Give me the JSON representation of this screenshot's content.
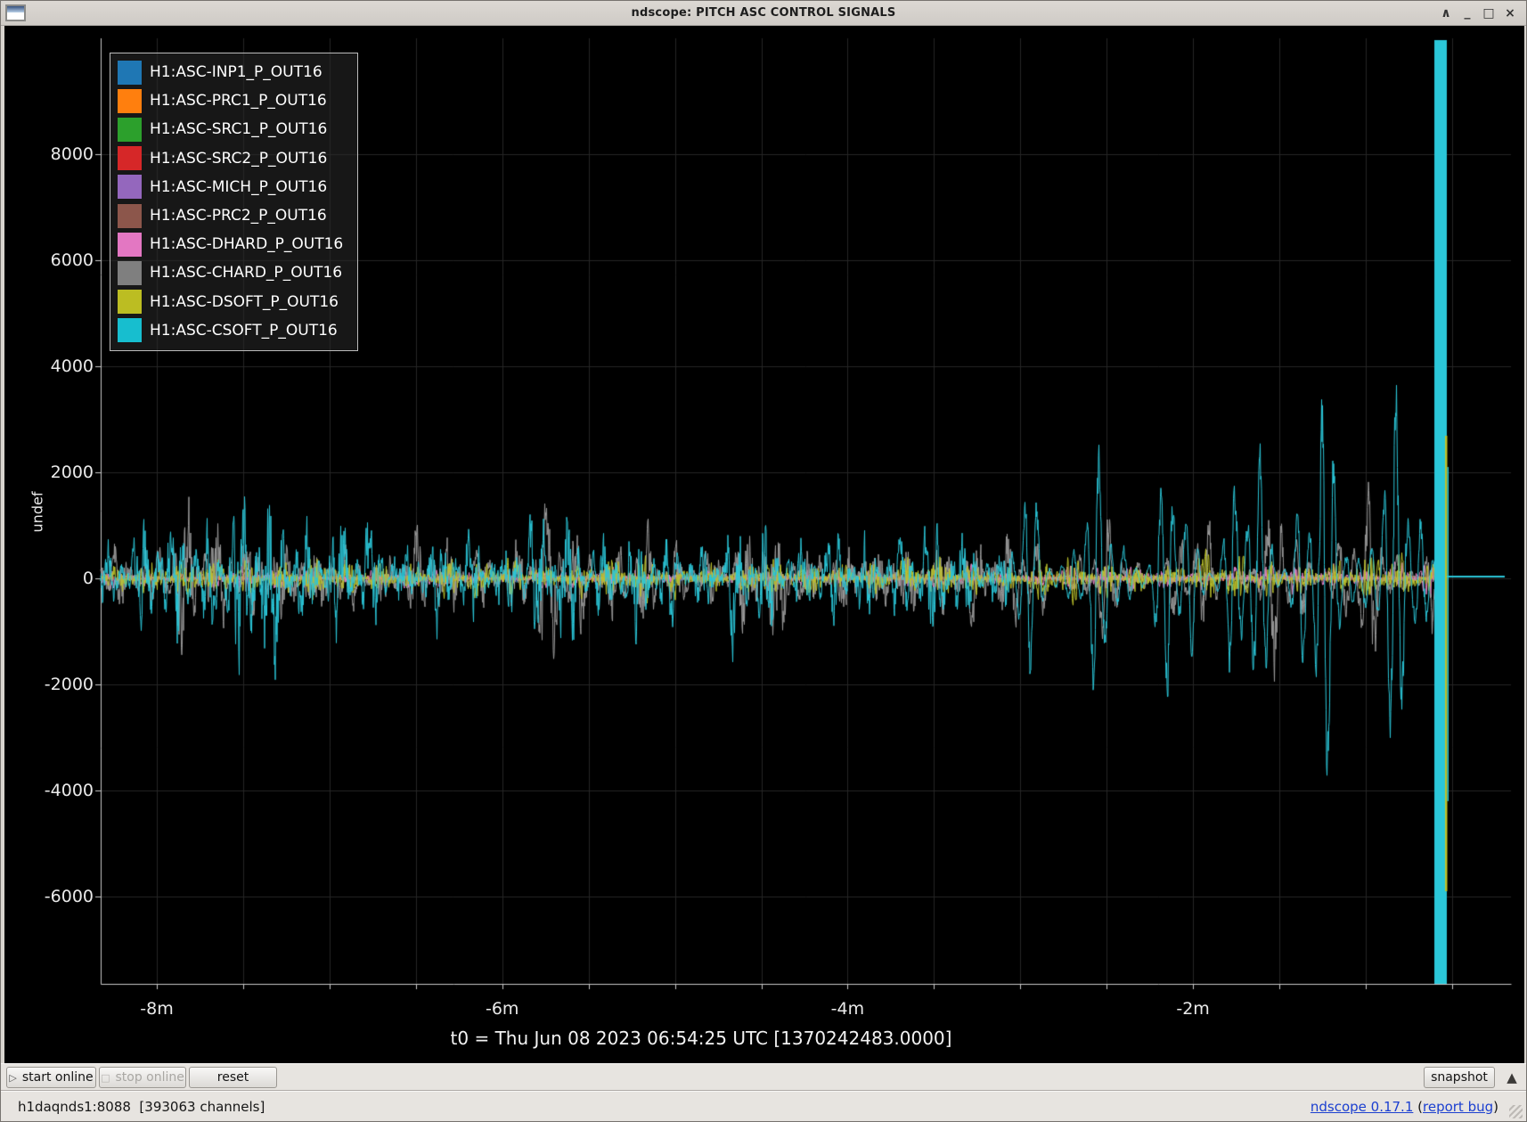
{
  "titlebar": {
    "title": "ndscope: PITCH ASC CONTROL SIGNALS",
    "controls": {
      "shade": "∧",
      "minimize": "_",
      "maximize": "□",
      "close": "×"
    }
  },
  "toolbar": {
    "start_icon": "▷",
    "start_label": "start online",
    "stop_icon": "□",
    "stop_label": "stop online",
    "reset_label": "reset",
    "snapshot_label": "snapshot",
    "expander_icon": "▲"
  },
  "statusbar": {
    "server_info": "h1daqnds1:8088  [393063 channels]",
    "version_link": "ndscope 0.17.1",
    "bug_prefix": " (",
    "bug_link": "report bug",
    "bug_suffix": ")"
  },
  "chart_data": {
    "type": "line",
    "title": "",
    "ylabel": "undef",
    "t0_label": "t0 = Thu Jun 08 2023 06:54:25 UTC [1370242483.0000]",
    "yticks": [
      8000,
      6000,
      4000,
      2000,
      0,
      -2000,
      -4000,
      -6000
    ],
    "xtick_labels": [
      "-8m",
      "-6m",
      "-4m",
      "-2m"
    ],
    "xtick_minutes": [
      -8,
      -6,
      -4,
      -2
    ],
    "x_range_minutes": [
      -8.36,
      -0.17
    ],
    "y_range": [
      -7650,
      10200
    ],
    "grid": true,
    "legend_position": "top-left",
    "background": "#000000",
    "series": [
      {
        "name": "H1:ASC-INP1_P_OUT16",
        "color": "#1f77b4",
        "plot_color": "#1f77b4",
        "envelope": [
          [
            -8.33,
            90
          ],
          [
            -0.6,
            90
          ]
        ],
        "texture": {
          "period_s": 1.3,
          "base_w": 0.2,
          "osc_w": 0.2,
          "packet_s": 40,
          "osc_start_t": null
        }
      },
      {
        "name": "H1:ASC-PRC1_P_OUT16",
        "color": "#ff7f0e",
        "plot_color": "#ff7f0e",
        "envelope": [
          [
            -8.33,
            75
          ],
          [
            -0.6,
            75
          ]
        ],
        "texture": {
          "period_s": 1.3,
          "base_w": 0.2,
          "osc_w": 0.2,
          "packet_s": 40,
          "osc_start_t": null
        }
      },
      {
        "name": "H1:ASC-SRC1_P_OUT16",
        "color": "#2ca02c",
        "plot_color": "#2ca02c",
        "envelope": [
          [
            -8.33,
            62
          ],
          [
            -0.6,
            62
          ]
        ],
        "texture": {
          "period_s": 1.3,
          "base_w": 0.2,
          "osc_w": 0.2,
          "packet_s": 40,
          "osc_start_t": null
        }
      },
      {
        "name": "H1:ASC-SRC2_P_OUT16",
        "color": "#d62728",
        "plot_color": "#d62728",
        "envelope": [
          [
            -8.33,
            55
          ],
          [
            -0.6,
            55
          ]
        ],
        "texture": {
          "period_s": 1.3,
          "base_w": 0.2,
          "osc_w": 0.2,
          "packet_s": 40,
          "osc_start_t": null
        }
      },
      {
        "name": "H1:ASC-MICH_P_OUT16",
        "color": "#9467bd",
        "plot_color": "#9467bd",
        "envelope": [
          [
            -8.33,
            50
          ],
          [
            -0.6,
            50
          ]
        ],
        "texture": {
          "period_s": 1.3,
          "base_w": 0.2,
          "osc_w": 0.2,
          "packet_s": 40,
          "osc_start_t": null
        }
      },
      {
        "name": "H1:ASC-PRC2_P_OUT16",
        "color": "#8c564b",
        "plot_color": "#8c564b",
        "envelope": [
          [
            -8.33,
            45
          ],
          [
            -0.6,
            45
          ]
        ],
        "texture": {
          "period_s": 1.3,
          "base_w": 0.2,
          "osc_w": 0.2,
          "packet_s": 40,
          "osc_start_t": null
        }
      },
      {
        "name": "H1:ASC-DHARD_P_OUT16",
        "color": "#e377c2",
        "plot_color": "#e583c6",
        "envelope": [
          [
            -8.33,
            230
          ],
          [
            -7,
            270
          ],
          [
            -6,
            230
          ],
          [
            -5,
            260
          ],
          [
            -4,
            240
          ],
          [
            -3.2,
            260
          ],
          [
            -2.4,
            300
          ],
          [
            -1.6,
            340
          ],
          [
            -1,
            380
          ],
          [
            -0.6,
            400
          ]
        ],
        "texture": {
          "period_s": 1.5,
          "base_w": 0.3,
          "osc_w": 0.3,
          "packet_s": 45,
          "osc_start_t": null
        }
      },
      {
        "name": "H1:ASC-CHARD_P_OUT16",
        "color": "#7f7f7f",
        "plot_color": "#9a9a9a",
        "envelope": [
          [
            -8.33,
            750
          ],
          [
            -8.0,
            1200
          ],
          [
            -7.87,
            2100
          ],
          [
            -7.7,
            1300
          ],
          [
            -7.4,
            1400
          ],
          [
            -7.1,
            950
          ],
          [
            -6.8,
            900
          ],
          [
            -6.5,
            1100
          ],
          [
            -6.2,
            850
          ],
          [
            -5.9,
            950
          ],
          [
            -5.68,
            1950
          ],
          [
            -5.45,
            1200
          ],
          [
            -5.1,
            850
          ],
          [
            -4.8,
            900
          ],
          [
            -4.47,
            1500
          ],
          [
            -4.1,
            950
          ],
          [
            -3.8,
            1000
          ],
          [
            -3.5,
            1200
          ],
          [
            -3.2,
            1100
          ],
          [
            -2.9,
            1400
          ],
          [
            -2.6,
            1300
          ],
          [
            -2.3,
            1500
          ],
          [
            -2.0,
            1600
          ],
          [
            -1.7,
            1800
          ],
          [
            -1.4,
            2100
          ],
          [
            -1.1,
            2000
          ],
          [
            -0.85,
            2200
          ],
          [
            -0.6,
            2200
          ]
        ],
        "texture": {
          "period_s": 5.0,
          "base_w": 0.4,
          "osc_w": 0.65,
          "packet_s": 30,
          "osc_start_t": -3.05
        }
      },
      {
        "name": "H1:ASC-DSOFT_P_OUT16",
        "color": "#bcbd22",
        "plot_color": "#bdc22b",
        "envelope": [
          [
            -8.33,
            430
          ],
          [
            -7.4,
            520
          ],
          [
            -6.8,
            450
          ],
          [
            -6.2,
            430
          ],
          [
            -5.6,
            480
          ],
          [
            -5.0,
            440
          ],
          [
            -4.4,
            430
          ],
          [
            -3.8,
            460
          ],
          [
            -3.2,
            440
          ],
          [
            -2.6,
            480
          ],
          [
            -2.0,
            490
          ],
          [
            -1.4,
            510
          ],
          [
            -0.6,
            520
          ]
        ],
        "texture": {
          "period_s": 1.2,
          "base_w": 0.25,
          "osc_w": 0.25,
          "packet_s": 40,
          "osc_start_t": null
        }
      },
      {
        "name": "H1:ASC-CSOFT_P_OUT16",
        "color": "#17becf",
        "plot_color": "#2bc7d9",
        "envelope": [
          [
            -8.33,
            1100
          ],
          [
            -7.9,
            1500
          ],
          [
            -7.42,
            2600
          ],
          [
            -7.1,
            1700
          ],
          [
            -6.7,
            1400
          ],
          [
            -6.2,
            1100
          ],
          [
            -5.7,
            1800
          ],
          [
            -5.3,
            1200
          ],
          [
            -4.9,
            1150
          ],
          [
            -4.5,
            1600
          ],
          [
            -4.1,
            1050
          ],
          [
            -3.7,
            1300
          ],
          [
            -3.4,
            1500
          ],
          [
            -3.15,
            1000
          ],
          [
            -3.0,
            2200
          ],
          [
            -2.8,
            2700
          ],
          [
            -2.6,
            2500
          ],
          [
            -2.4,
            2900
          ],
          [
            -2.2,
            2600
          ],
          [
            -2.0,
            3100
          ],
          [
            -1.8,
            3300
          ],
          [
            -1.6,
            3600
          ],
          [
            -1.45,
            4300
          ],
          [
            -1.3,
            4600
          ],
          [
            -1.15,
            4300
          ],
          [
            -1.0,
            4400
          ],
          [
            -0.85,
            4100
          ],
          [
            -0.7,
            4300
          ],
          [
            -0.6,
            4300
          ]
        ],
        "texture": {
          "period_s": 4.3,
          "base_w": 0.45,
          "osc_w": 0.8,
          "packet_s": 26,
          "osc_start_t": -3.05
        }
      }
    ],
    "lockloss_event": {
      "spike_t_minutes": -0.6,
      "spike_channels": [
        "H1:ASC-CSOFT_P_OUT16",
        "H1:ASC-DSOFT_P_OUT16"
      ],
      "flat_value_after": 0,
      "flat_until_minutes": -0.25
    }
  }
}
